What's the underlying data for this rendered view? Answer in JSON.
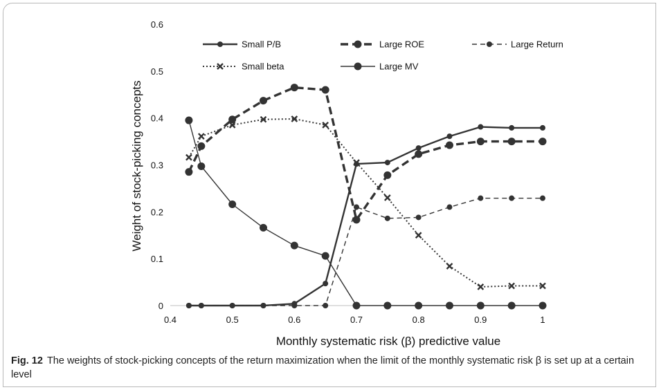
{
  "caption": {
    "label": "Fig. 12",
    "text": "The weights of stock-picking concepts of the return maximization when the limit of the monthly systematic risk β is set up at a certain level"
  },
  "chart_data": {
    "type": "line",
    "xlabel": "Monthly systematic risk (β) predictive value",
    "ylabel": "Weight of stock-picking concepts",
    "xlim": [
      0.4,
      1
    ],
    "ylim": [
      0,
      0.6
    ],
    "xticks": [
      "0.4",
      "0.5",
      "0.6",
      "0.7",
      "0.8",
      "0.9",
      "1"
    ],
    "yticks": [
      "0",
      "0.1",
      "0.2",
      "0.3",
      "0.4",
      "0.5",
      "0.6"
    ],
    "x": [
      0.43,
      0.45,
      0.5,
      0.55,
      0.6,
      0.65,
      0.7,
      0.75,
      0.8,
      0.85,
      0.9,
      0.95,
      1.0
    ],
    "grid": false,
    "legend_position": "top",
    "series": [
      {
        "name": "Small P/B",
        "style": "solid",
        "marker": "circle",
        "color": "#333333",
        "values": [
          0.0,
          0.0,
          0.0,
          0.0,
          0.004,
          0.047,
          0.302,
          0.305,
          0.336,
          0.361,
          0.381,
          0.379,
          0.379
        ]
      },
      {
        "name": "Large ROE",
        "style": "dashed-bold",
        "marker": "circle-large",
        "color": "#333333",
        "values": [
          0.285,
          0.34,
          0.397,
          0.437,
          0.465,
          0.46,
          0.183,
          0.278,
          0.323,
          0.342,
          0.35,
          0.35,
          0.35
        ]
      },
      {
        "name": "Large Return",
        "style": "dashed-thin",
        "marker": "circle",
        "color": "#333333",
        "values": [
          0.0,
          0.0,
          0.0,
          0.0,
          0.0,
          0.0,
          0.21,
          0.186,
          0.188,
          0.21,
          0.229,
          0.229,
          0.229
        ]
      },
      {
        "name": "Small beta",
        "style": "dotted",
        "marker": "x",
        "color": "#333333",
        "values": [
          0.316,
          0.361,
          0.385,
          0.397,
          0.398,
          0.385,
          0.305,
          0.23,
          0.15,
          0.084,
          0.04,
          0.042,
          0.042
        ]
      },
      {
        "name": "Large MV",
        "style": "solid-thin",
        "marker": "circle-large",
        "color": "#333333",
        "values": [
          0.395,
          0.297,
          0.216,
          0.166,
          0.128,
          0.106,
          0.0,
          0.0,
          0.0,
          0.0,
          0.0,
          0.0,
          0.0
        ]
      }
    ]
  }
}
